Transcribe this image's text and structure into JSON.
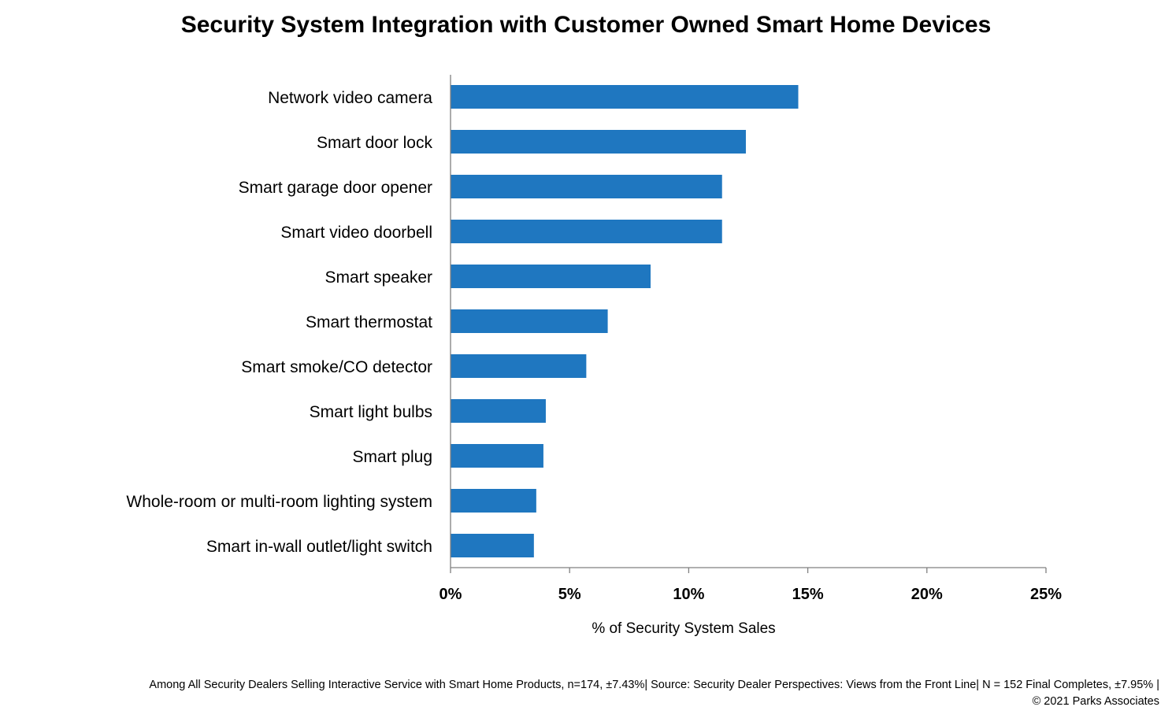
{
  "chart_data": {
    "type": "bar",
    "orientation": "horizontal",
    "title": "Security System Integration with Customer Owned Smart Home Devices",
    "xlabel": "% of Security System Sales",
    "ylabel": "",
    "categories": [
      "Network video camera",
      "Smart door lock",
      "Smart garage door opener",
      "Smart video doorbell",
      "Smart speaker",
      "Smart thermostat",
      "Smart smoke/CO detector",
      "Smart light bulbs",
      "Smart plug",
      "Whole-room or multi-room lighting system",
      "Smart in-wall outlet/light switch"
    ],
    "values": [
      14.6,
      12.4,
      11.4,
      11.4,
      8.4,
      6.6,
      5.7,
      4.0,
      3.9,
      3.6,
      3.5
    ],
    "xlim": [
      0,
      25
    ],
    "xticks": [
      0,
      5,
      10,
      15,
      20,
      25
    ],
    "xtick_labels": [
      "0%",
      "5%",
      "10%",
      "15%",
      "20%",
      "25%"
    ],
    "grid": false,
    "legend": "none",
    "bar_color": "#1f77c0"
  },
  "footnotes": {
    "line1": "Among All Security Dealers Selling Interactive Service with Smart Home Products, n=174, ±7.43%|  Source: Security Dealer Perspectives: Views from the Front Line|  N = 152 Final Completes, ±7.95% |",
    "line2": "© 2021 Parks Associates"
  }
}
